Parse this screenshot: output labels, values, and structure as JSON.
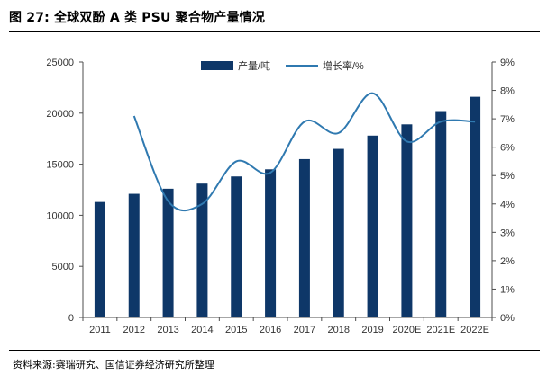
{
  "figure": {
    "title": "图 27:  全球双酚 A 类 PSU 聚合物产量情况",
    "source": "资料来源:赛瑞研究、国信证券经济研究所整理"
  },
  "colors": {
    "bar": "#0e3768",
    "line": "#2f79b0",
    "axis": "#4d4d4d",
    "text": "#333333"
  },
  "chart_data": {
    "type": "bar+line",
    "categories": [
      "2011",
      "2012",
      "2013",
      "2014",
      "2015",
      "2016",
      "2017",
      "2018",
      "2019",
      "2020E",
      "2021E",
      "2022E"
    ],
    "series": [
      {
        "name": "产量/吨",
        "type": "bar",
        "axis": "left",
        "values": [
          11300,
          12100,
          12600,
          13100,
          13800,
          14500,
          15500,
          16500,
          17800,
          18900,
          20200,
          21600
        ]
      },
      {
        "name": "增长率/%",
        "type": "line",
        "axis": "right",
        "values": [
          null,
          7.1,
          4.1,
          4.0,
          5.5,
          5.1,
          6.9,
          6.5,
          7.9,
          6.2,
          6.9,
          6.9
        ]
      }
    ],
    "y_left": {
      "min": 0,
      "max": 25000,
      "ticks": [
        "0",
        "5000",
        "10000",
        "15000",
        "20000",
        "25000"
      ]
    },
    "y_right": {
      "min": 0,
      "max": 9,
      "ticks": [
        "0%",
        "1%",
        "2%",
        "3%",
        "4%",
        "5%",
        "6%",
        "7%",
        "8%",
        "9%"
      ]
    },
    "legend_position": "top-center",
    "grid": false
  }
}
